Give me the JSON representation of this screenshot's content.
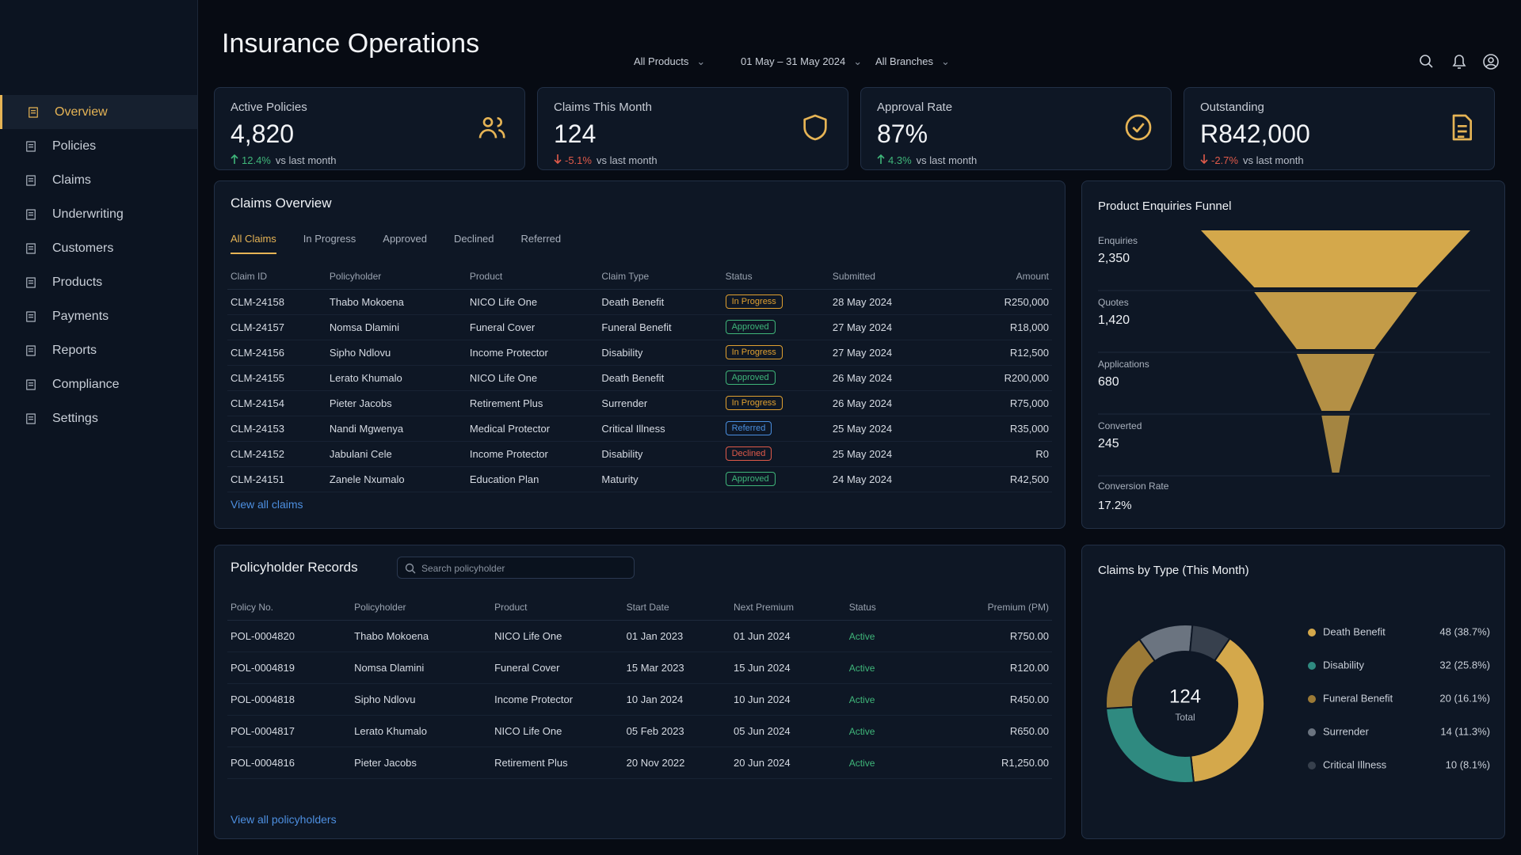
{
  "nav": {
    "items": [
      "Overview",
      "Policies",
      "Claims",
      "Underwriting",
      "Customers",
      "Products",
      "Payments",
      "Reports",
      "Compliance",
      "Settings"
    ],
    "active": 0
  },
  "header": {
    "title": "Insurance Operations",
    "filters": [
      "All Products",
      "01 May – 31 May 2024",
      "All Branches"
    ]
  },
  "kpis": [
    {
      "label": "Active Policies",
      "value": "4,820",
      "change": "12.4%",
      "note": "vs last month",
      "trend": "up",
      "color": "#3fb67a"
    },
    {
      "label": "Claims This Month",
      "value": "124",
      "change": "-5.1%",
      "note": "vs last month",
      "trend": "down",
      "color": "#e05a4a"
    },
    {
      "label": "Approval Rate",
      "value": "87%",
      "change": "4.3%",
      "note": "vs last month",
      "trend": "up",
      "color": "#3fb67a"
    },
    {
      "label": "Outstanding",
      "value": "R842,000",
      "change": "-2.7%",
      "note": "vs last month",
      "trend": "down",
      "color": "#e05a4a"
    }
  ],
  "claims": {
    "title": "Claims Overview",
    "tabs": [
      "All Claims",
      "In Progress",
      "Approved",
      "Declined",
      "Referred"
    ],
    "active_tab": 0,
    "columns": [
      "Claim ID",
      "Policyholder",
      "Product",
      "Claim Type",
      "Status",
      "Submitted",
      "Amount"
    ],
    "rows": [
      [
        "CLM-24158",
        "Thabo Mokoena",
        "NICO Life One",
        "Death Benefit",
        "In Progress",
        "28 May 2024",
        "R250,000"
      ],
      [
        "CLM-24157",
        "Nomsa Dlamini",
        "Funeral Cover",
        "Funeral Benefit",
        "Approved",
        "27 May 2024",
        "R18,000"
      ],
      [
        "CLM-24156",
        "Sipho Ndlovu",
        "Income Protector",
        "Disability",
        "In Progress",
        "27 May 2024",
        "R12,500"
      ],
      [
        "CLM-24155",
        "Lerato Khumalo",
        "NICO Life One",
        "Death Benefit",
        "Approved",
        "26 May 2024",
        "R200,000"
      ],
      [
        "CLM-24154",
        "Pieter Jacobs",
        "Retirement Plus",
        "Surrender",
        "In Progress",
        "26 May 2024",
        "R75,000"
      ],
      [
        "CLM-24153",
        "Nandi Mgwenya",
        "Medical Protector",
        "Critical Illness",
        "Referred",
        "25 May 2024",
        "R35,000"
      ],
      [
        "CLM-24152",
        "Jabulani Cele",
        "Income Protector",
        "Disability",
        "Declined",
        "25 May 2024",
        "R0"
      ],
      [
        "CLM-24151",
        "Zanele Nxumalo",
        "Education Plan",
        "Maturity",
        "Approved",
        "24 May 2024",
        "R42,500"
      ]
    ],
    "status_colors": [
      "#e0a030",
      "#3fb67a",
      "#e0a030",
      "#3fb67a",
      "#e0a030",
      "#4a8fe0",
      "#e05a4a",
      "#3fb67a"
    ],
    "link": "View all claims"
  },
  "policyholders": {
    "title": "Policyholder Records",
    "search_placeholder": "Search policyholder",
    "columns": [
      "Policy No.",
      "Policyholder",
      "Product",
      "Start Date",
      "Next Premium",
      "Status",
      "Premium (PM)"
    ],
    "rows": [
      [
        "POL-0004820",
        "Thabo Mokoena",
        "NICO Life One",
        "01 Jan 2023",
        "01 Jun 2024",
        "Active",
        "R750.00"
      ],
      [
        "POL-0004819",
        "Nomsa Dlamini",
        "Funeral Cover",
        "15 Mar 2023",
        "15 Jun 2024",
        "Active",
        "R120.00"
      ],
      [
        "POL-0004818",
        "Sipho Ndlovu",
        "Income Protector",
        "10 Jan 2024",
        "10 Jun 2024",
        "Active",
        "R450.00"
      ],
      [
        "POL-0004817",
        "Lerato Khumalo",
        "NICO Life One",
        "05 Feb 2023",
        "05 Jun 2024",
        "Active",
        "R650.00"
      ],
      [
        "POL-0004816",
        "Pieter Jacobs",
        "Retirement Plus",
        "20 Nov 2022",
        "20 Jun 2024",
        "Active",
        "R1,250.00"
      ]
    ],
    "status_colors": [
      "#3fb67a",
      "#3fb67a",
      "#3fb67a",
      "#3fb67a",
      "#3fb67a"
    ],
    "link": "View all policyholders"
  },
  "chart_data": [
    {
      "type": "funnel",
      "title": "Product Enquiries Funnel",
      "categories": [
        "Enquiries",
        "Quotes",
        "Applications",
        "Converted"
      ],
      "values": [
        2350,
        1420,
        680,
        245
      ],
      "value_labels": [
        "2,350",
        "1,420",
        "680",
        "245"
      ],
      "color": "#d4a84b",
      "footer_label": "Conversion Rate",
      "footer_value": "17.2%"
    },
    {
      "type": "pie",
      "title": "Claims by Type (This Month)",
      "categories": [
        "Death Benefit",
        "Disability",
        "Funeral Benefit",
        "Surrender",
        "Critical Illness"
      ],
      "values": [
        48,
        32,
        20,
        14,
        10
      ],
      "value_labels": [
        "48 (38.7%)",
        "32 (25.8%)",
        "20 (16.1%)",
        "14 (11.3%)",
        "10 (8.1%)"
      ],
      "colors": [
        "#d4a84b",
        "#2f8a80",
        "#9c7a36",
        "#6b7480",
        "#37404d"
      ],
      "total": 124,
      "total_label": "Total"
    }
  ]
}
